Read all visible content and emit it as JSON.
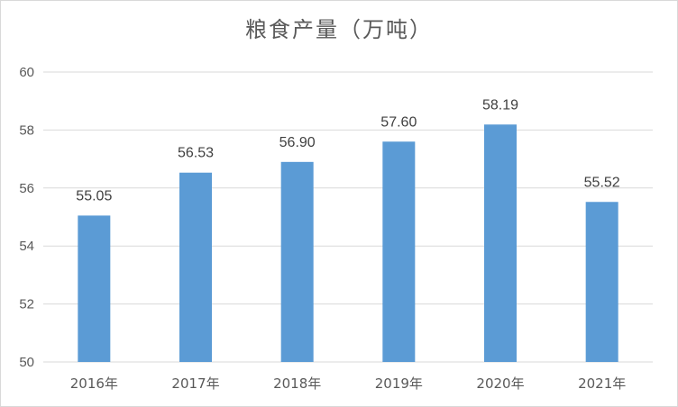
{
  "chart_data": {
    "type": "bar",
    "title": "粮食产量（万吨）",
    "categories": [
      "2016年",
      "2017年",
      "2018年",
      "2019年",
      "2020年",
      "2021年"
    ],
    "values": [
      55.05,
      56.53,
      56.9,
      57.6,
      58.19,
      55.52
    ],
    "data_labels": [
      "55.05",
      "56.53",
      "56.90",
      "57.60",
      "58.19",
      "55.52"
    ],
    "ylim": [
      50,
      60
    ],
    "yticks": [
      50,
      52,
      54,
      56,
      58,
      60
    ],
    "xlabel": "",
    "ylabel": "",
    "grid": true,
    "legend": "none",
    "bar_color": "#5b9bd5",
    "grid_color": "#d9d9d9"
  }
}
